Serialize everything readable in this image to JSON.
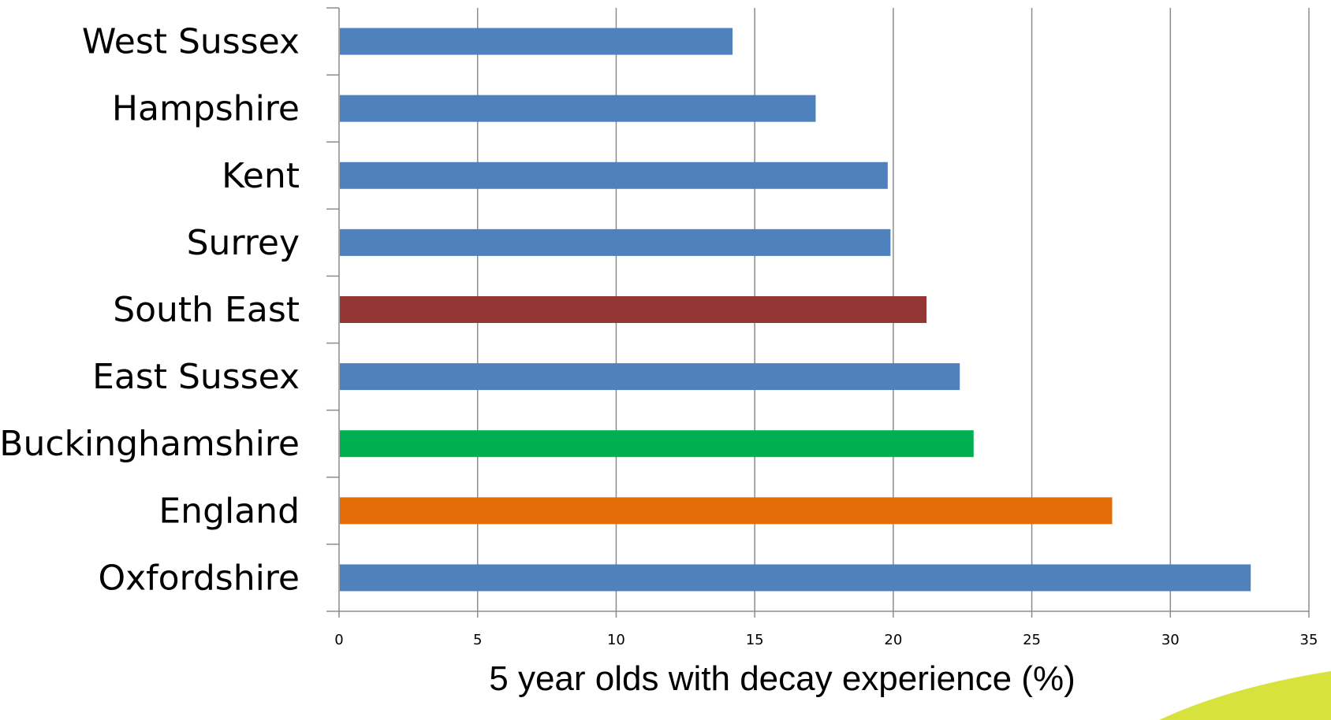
{
  "chart_data": {
    "type": "bar",
    "orientation": "horizontal",
    "categories": [
      "West Sussex",
      "Hampshire",
      "Kent",
      "Surrey",
      "South East",
      "East Sussex",
      "Buckinghamshire",
      "England",
      "Oxfordshire"
    ],
    "values": [
      14.2,
      17.2,
      19.8,
      19.9,
      21.2,
      22.4,
      22.9,
      27.9,
      32.9
    ],
    "colors": [
      "#4f81bd",
      "#4f81bd",
      "#4f81bd",
      "#4f81bd",
      "#943634",
      "#4f81bd",
      "#00b050",
      "#e36c09",
      "#4f81bd"
    ],
    "xlabel": "5 year olds with decay experience (%)",
    "ylabel": "",
    "title": "",
    "xlim": [
      0,
      35
    ],
    "xticks": [
      "0",
      "5",
      "10",
      "15",
      "20",
      "25",
      "30",
      "35"
    ],
    "grid": true
  }
}
